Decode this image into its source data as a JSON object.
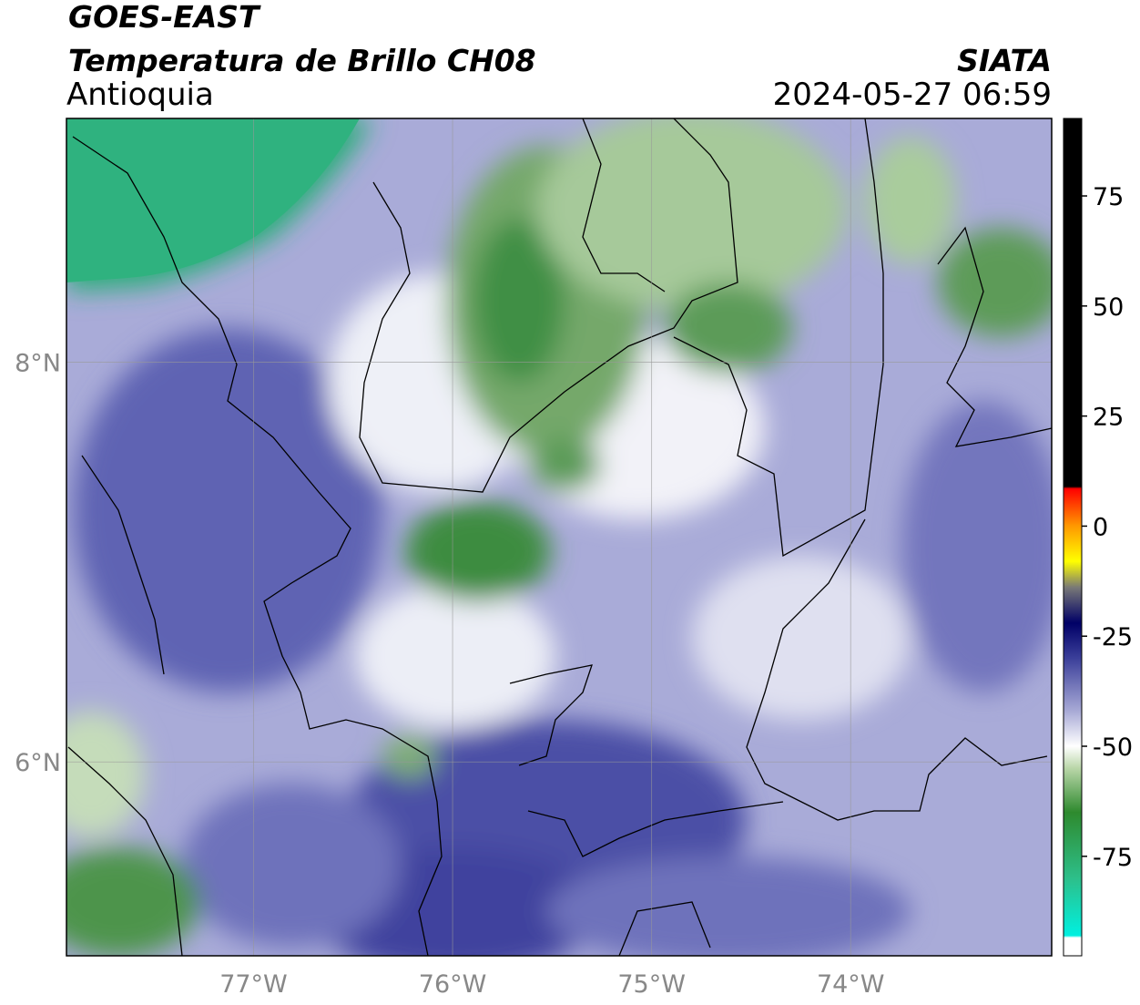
{
  "header": {
    "satellite": "GOES-EAST",
    "product": "Temperatura de Brillo CH08",
    "region": "Antioquia",
    "agency": "SIATA",
    "timestamp": "2024-05-27 06:59"
  },
  "map": {
    "xlim": [
      -77.94,
      -72.99
    ],
    "ylim": [
      5.03,
      9.22
    ],
    "xticks": [
      {
        "value": -77,
        "label": "77°W"
      },
      {
        "value": -76,
        "label": "76°W"
      },
      {
        "value": -75,
        "label": "75°W"
      },
      {
        "value": -74,
        "label": "74°W"
      }
    ],
    "yticks": [
      {
        "value": 6,
        "label": "6°N"
      },
      {
        "value": 8,
        "label": "8°N"
      }
    ],
    "grid": true
  },
  "colorbar": {
    "lim": [
      -97.6,
      92.6
    ],
    "ticks": [
      -75,
      -50,
      -25,
      0,
      25,
      50,
      75
    ],
    "stops": [
      {
        "value": 92.6,
        "color": "#000000"
      },
      {
        "value": 9,
        "color": "#000000"
      },
      {
        "value": 8.5,
        "color": "#ff0000"
      },
      {
        "value": 0,
        "color": "#ff9900"
      },
      {
        "value": -8,
        "color": "#ffff00"
      },
      {
        "value": -14,
        "color": "#777777"
      },
      {
        "value": -22,
        "color": "#000066"
      },
      {
        "value": -30,
        "color": "#3b3f9a"
      },
      {
        "value": -42,
        "color": "#a8aad6"
      },
      {
        "value": -50,
        "color": "#ffffff"
      },
      {
        "value": -55,
        "color": "#b9d6a8"
      },
      {
        "value": -65,
        "color": "#2e8a2e"
      },
      {
        "value": -80,
        "color": "#2dbf8a"
      },
      {
        "value": -93,
        "color": "#00f0e0"
      },
      {
        "value": -93.5,
        "color": "#ffffff"
      },
      {
        "value": -97.6,
        "color": "#ffffff"
      }
    ]
  }
}
